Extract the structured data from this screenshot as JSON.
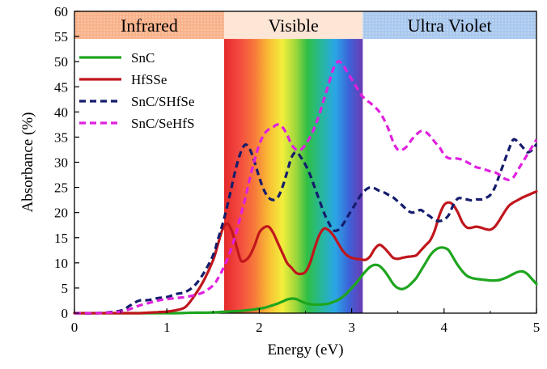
{
  "chart_data": {
    "type": "line",
    "title": "",
    "xlabel": "Energy (eV)",
    "ylabel": "Absorbance (%)",
    "xlim": [
      0,
      5
    ],
    "ylim": [
      0,
      60
    ],
    "xticks": [
      0,
      1,
      2,
      3,
      4,
      5
    ],
    "yticks": [
      0,
      5,
      10,
      15,
      20,
      25,
      30,
      35,
      40,
      45,
      50,
      55,
      60
    ],
    "grid": false,
    "legend_position": "top-left",
    "regions": [
      {
        "label": "Infrared",
        "start": 0,
        "end": 1.62,
        "color": "#f8b28a",
        "pattern": "dots"
      },
      {
        "label": "Visible",
        "start": 1.62,
        "end": 3.12,
        "color": "#fde6d6",
        "pattern": "spectrum"
      },
      {
        "label": "Ultra Violet",
        "start": 3.12,
        "end": 5,
        "color": "#a9c8ee",
        "pattern": "dots"
      }
    ],
    "x": [
      0,
      0.25,
      0.5,
      0.6,
      0.7,
      0.8,
      0.9,
      1.0,
      1.1,
      1.2,
      1.3,
      1.4,
      1.5,
      1.55,
      1.6,
      1.65,
      1.7,
      1.75,
      1.8,
      1.85,
      1.9,
      1.95,
      2.0,
      2.05,
      2.1,
      2.15,
      2.2,
      2.25,
      2.3,
      2.35,
      2.4,
      2.45,
      2.5,
      2.55,
      2.6,
      2.65,
      2.7,
      2.75,
      2.8,
      2.85,
      2.9,
      2.95,
      3.0,
      3.05,
      3.1,
      3.15,
      3.2,
      3.25,
      3.3,
      3.35,
      3.4,
      3.45,
      3.5,
      3.55,
      3.6,
      3.65,
      3.7,
      3.75,
      3.8,
      3.85,
      3.9,
      3.95,
      4.0,
      4.05,
      4.1,
      4.15,
      4.2,
      4.25,
      4.3,
      4.35,
      4.4,
      4.45,
      4.5,
      4.55,
      4.6,
      4.65,
      4.7,
      4.75,
      4.8,
      4.85,
      4.9,
      4.95,
      5.0
    ],
    "series": [
      {
        "name": "SnC",
        "color": "#1ea51e",
        "dash": "solid",
        "values": [
          0,
          0,
          0,
          0,
          0,
          0,
          0,
          0,
          0,
          0.05,
          0.1,
          0.1,
          0.15,
          0.2,
          0.25,
          0.3,
          0.35,
          0.4,
          0.45,
          0.55,
          0.65,
          0.75,
          0.9,
          1.05,
          1.3,
          1.6,
          1.9,
          2.3,
          2.7,
          2.9,
          2.8,
          2.4,
          2.0,
          1.8,
          1.7,
          1.7,
          1.75,
          1.9,
          2.2,
          2.6,
          3.2,
          4.0,
          5.0,
          6.0,
          7.2,
          8.3,
          9.2,
          9.6,
          9.4,
          8.5,
          7.2,
          5.8,
          5.0,
          4.8,
          5.2,
          6.0,
          7.0,
          8.5,
          10.0,
          11.5,
          12.5,
          13.0,
          13.0,
          12.5,
          11.0,
          9.5,
          8.3,
          7.4,
          7.0,
          6.8,
          6.7,
          6.6,
          6.5,
          6.5,
          6.6,
          6.9,
          7.3,
          7.8,
          8.2,
          8.3,
          7.8,
          6.8,
          5.8
        ]
      },
      {
        "name": "HfSSe",
        "color": "#c0161c",
        "dash": "solid",
        "values": [
          0,
          0,
          0,
          0,
          0,
          0.1,
          0.2,
          0.3,
          0.6,
          1.2,
          3.5,
          6.5,
          10.5,
          13.5,
          16.5,
          17.8,
          16.5,
          13.5,
          10.5,
          10.5,
          11.5,
          13.5,
          16.0,
          17.0,
          17.2,
          16.0,
          14.0,
          12.0,
          10.0,
          9.0,
          8.0,
          7.8,
          8.2,
          10.0,
          13.0,
          15.5,
          16.8,
          16.5,
          15.5,
          14.0,
          12.5,
          11.5,
          11.0,
          10.8,
          10.7,
          10.6,
          11.3,
          12.8,
          13.6,
          13.0,
          12.0,
          11.0,
          10.8,
          11.0,
          11.2,
          11.3,
          11.5,
          12.5,
          13.5,
          14.5,
          16.5,
          19.5,
          21.5,
          22.0,
          21.5,
          20.0,
          18.0,
          17.0,
          17.0,
          17.2,
          17.0,
          16.7,
          16.6,
          17.2,
          18.5,
          20.0,
          21.3,
          22.0,
          22.5,
          23.0,
          23.4,
          23.8,
          24.2
        ]
      },
      {
        "name": "SnC/SHfSe",
        "color": "#141c6c",
        "dash": "dashed",
        "values": [
          0,
          0,
          0.5,
          1.5,
          2.5,
          2.6,
          3.0,
          3.2,
          3.8,
          4.2,
          5.5,
          8.0,
          11.5,
          14.5,
          17.5,
          21.0,
          25.0,
          29.0,
          32.0,
          33.5,
          32.5,
          30.0,
          27.0,
          24.5,
          23.0,
          22.5,
          23.0,
          25.0,
          28.0,
          31.0,
          32.0,
          31.0,
          29.5,
          27.5,
          25.0,
          22.5,
          20.0,
          18.0,
          16.5,
          16.5,
          17.5,
          19.0,
          20.5,
          22.0,
          23.5,
          24.5,
          25.0,
          24.8,
          24.3,
          24.0,
          23.5,
          23.0,
          22.2,
          21.4,
          20.5,
          20.0,
          20.2,
          20.5,
          19.8,
          19.2,
          18.5,
          18.3,
          18.6,
          19.5,
          21.5,
          22.8,
          22.8,
          22.6,
          22.4,
          22.6,
          22.6,
          22.9,
          23.5,
          25.0,
          27.5,
          30.0,
          32.5,
          34.5,
          34.0,
          33.0,
          32.0,
          32.4,
          33.6
        ]
      },
      {
        "name": "SnC/SeHfS",
        "color": "#e020de",
        "dash": "dashed",
        "values": [
          0,
          0,
          0.3,
          0.8,
          1.5,
          2.0,
          2.5,
          2.8,
          3.0,
          3.2,
          3.6,
          4.2,
          5.5,
          6.8,
          8.5,
          10.5,
          13.0,
          16.0,
          19.5,
          23.0,
          27.0,
          30.5,
          33.5,
          35.5,
          36.5,
          37.0,
          37.5,
          37.0,
          35.5,
          33.5,
          32.5,
          32.5,
          33.5,
          35.0,
          37.0,
          39.5,
          42.5,
          45.5,
          48.5,
          50.0,
          49.5,
          48.0,
          46.5,
          45.0,
          43.5,
          42.5,
          41.8,
          41.0,
          40.0,
          38.5,
          36.5,
          34.0,
          32.5,
          32.5,
          33.2,
          34.5,
          35.5,
          36.2,
          36.0,
          35.2,
          34.0,
          33.0,
          31.5,
          30.8,
          30.8,
          30.7,
          30.5,
          30.0,
          29.5,
          29.0,
          28.8,
          28.5,
          28.2,
          28.0,
          27.5,
          26.8,
          26.5,
          27.0,
          28.5,
          30.0,
          31.5,
          33.0,
          34.5
        ]
      }
    ]
  }
}
